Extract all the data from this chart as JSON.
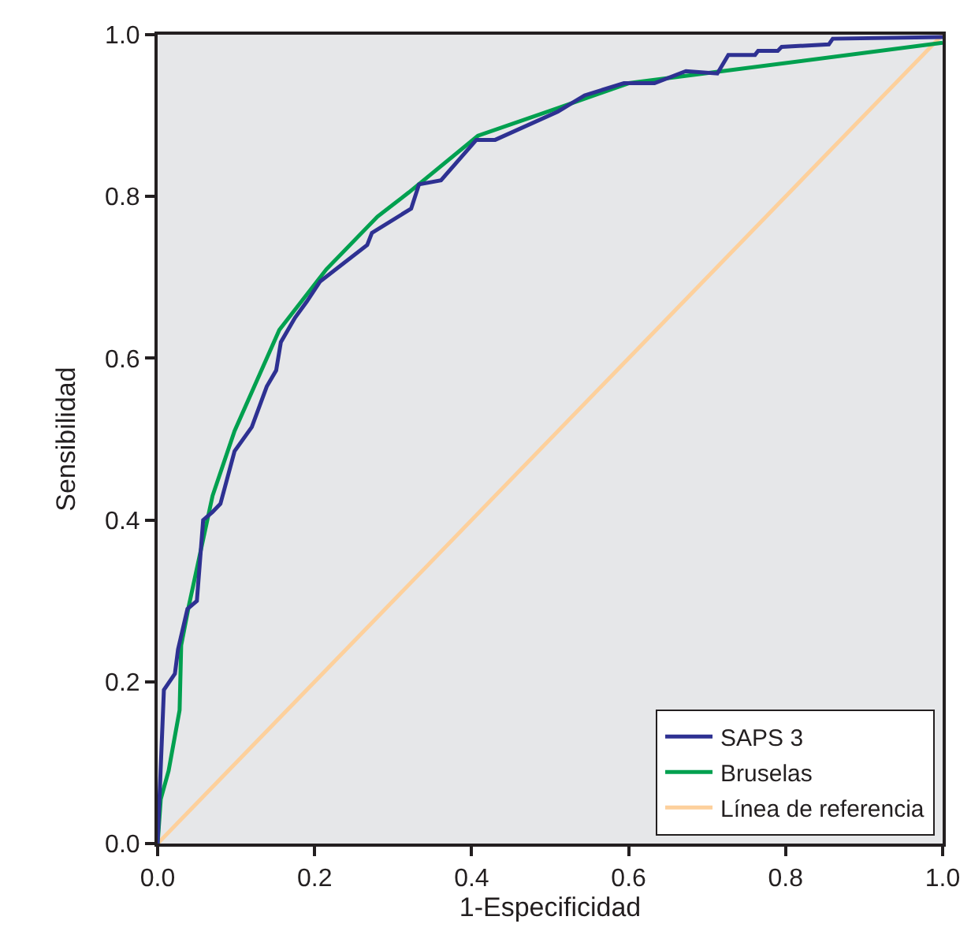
{
  "chart_data": {
    "type": "line",
    "xlabel": "1-Especificidad",
    "ylabel": "Sensibilidad",
    "xlim": [
      0,
      1
    ],
    "ylim": [
      0,
      1
    ],
    "xticks": [
      {
        "value": 0,
        "label": "0.0"
      },
      0.2,
      0.4,
      0.6,
      0.8,
      {
        "value": 1,
        "label": "1.0"
      }
    ],
    "yticks": [
      {
        "value": 0,
        "label": "0.0"
      },
      0.2,
      0.4,
      0.6,
      0.8,
      {
        "value": 1,
        "label": "1.0"
      }
    ],
    "grid": false,
    "legend": "bottom right",
    "marker": "none",
    "line_style": "solid",
    "series": [
      {
        "name": "SAPS 3",
        "color": "#2e3192",
        "x": [
          0,
          0.008,
          0.022,
          0.026,
          0.038,
          0.05,
          0.058,
          0.07,
          0.08,
          0.098,
          0.12,
          0.139,
          0.151,
          0.157,
          0.175,
          0.19,
          0.207,
          0.267,
          0.273,
          0.323,
          0.333,
          0.361,
          0.406,
          0.43,
          0.51,
          0.544,
          0.594,
          0.633,
          0.673,
          0.713,
          0.727,
          0.761,
          0.765,
          0.79,
          0.795,
          0.855,
          0.86,
          1
        ],
        "values": [
          0,
          0.19,
          0.21,
          0.24,
          0.29,
          0.3,
          0.4,
          0.41,
          0.42,
          0.485,
          0.515,
          0.565,
          0.585,
          0.62,
          0.65,
          0.67,
          0.695,
          0.74,
          0.755,
          0.785,
          0.815,
          0.82,
          0.87,
          0.87,
          0.905,
          0.925,
          0.94,
          0.94,
          0.955,
          0.952,
          0.975,
          0.975,
          0.98,
          0.98,
          0.985,
          0.988,
          0.995,
          0.997
        ]
      },
      {
        "name": "Bruselas",
        "color": "#00a04f",
        "x": [
          0,
          0.004,
          0.014,
          0.028,
          0.03,
          0.04,
          0.07,
          0.098,
          0.155,
          0.215,
          0.28,
          0.32,
          0.408,
          0.512,
          0.6,
          1
        ],
        "values": [
          0,
          0.055,
          0.09,
          0.165,
          0.245,
          0.295,
          0.43,
          0.51,
          0.635,
          0.71,
          0.775,
          0.805,
          0.875,
          0.91,
          0.94,
          0.99
        ]
      },
      {
        "name": "Línea de referencia",
        "color": "#fdd09c",
        "x": [
          0,
          1
        ],
        "values": [
          0,
          1
        ]
      }
    ]
  }
}
